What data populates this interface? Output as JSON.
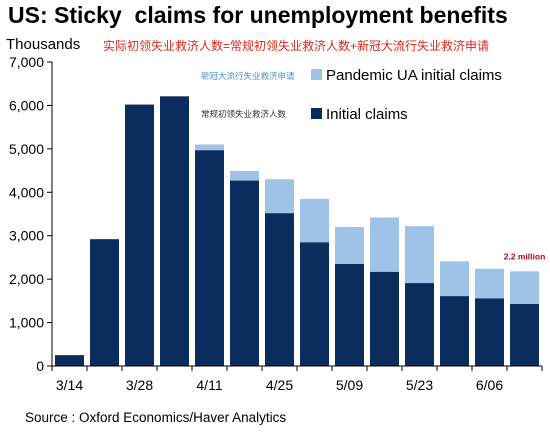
{
  "header": {
    "title": "US: Sticky  claims for unemployment benefits",
    "units": "Thousands",
    "note": "实际初领失业救济人数=常规初领失业救济人数+新冠大流行失业救济申请"
  },
  "source": "Source : Oxford Economics/Haver Analytics",
  "colors": {
    "initial": "#0b2d5e",
    "pandemic": "#9ec3e6"
  },
  "chart_data": {
    "type": "bar",
    "stacked": true,
    "categories": [
      "3/14",
      "3/21",
      "3/28",
      "4/04",
      "4/11",
      "4/18",
      "4/25",
      "5/02",
      "5/09",
      "5/16",
      "5/23",
      "5/30",
      "6/06",
      "6/13"
    ],
    "x_tick_labels": [
      "3/14",
      "",
      "3/28",
      "",
      "4/11",
      "",
      "4/25",
      "",
      "5/09",
      "",
      "5/23",
      "",
      "6/06",
      ""
    ],
    "series": [
      {
        "name": "Initial claims",
        "name_cn": "常规初领失业救济人数",
        "values": [
          250,
          2920,
          6020,
          6210,
          4970,
          4270,
          3520,
          2850,
          2350,
          2170,
          1910,
          1610,
          1560,
          1430
        ]
      },
      {
        "name": "Pandemic UA initial claims",
        "name_cn": "新冠大流行失业救济申请",
        "values": [
          0,
          0,
          0,
          0,
          130,
          220,
          780,
          1000,
          850,
          1250,
          1310,
          800,
          680,
          750
        ]
      }
    ],
    "ylim": [
      0,
      7000
    ],
    "yticks": [
      0,
      1000,
      2000,
      3000,
      4000,
      5000,
      6000,
      7000
    ],
    "ytick_labels": [
      "0",
      "1,000",
      "2,000",
      "3,000",
      "4,000",
      "5,000",
      "6,000",
      "7,000"
    ],
    "annotation": {
      "text": "2.2 million",
      "category": "6/13"
    },
    "legend_position": "top-right"
  }
}
